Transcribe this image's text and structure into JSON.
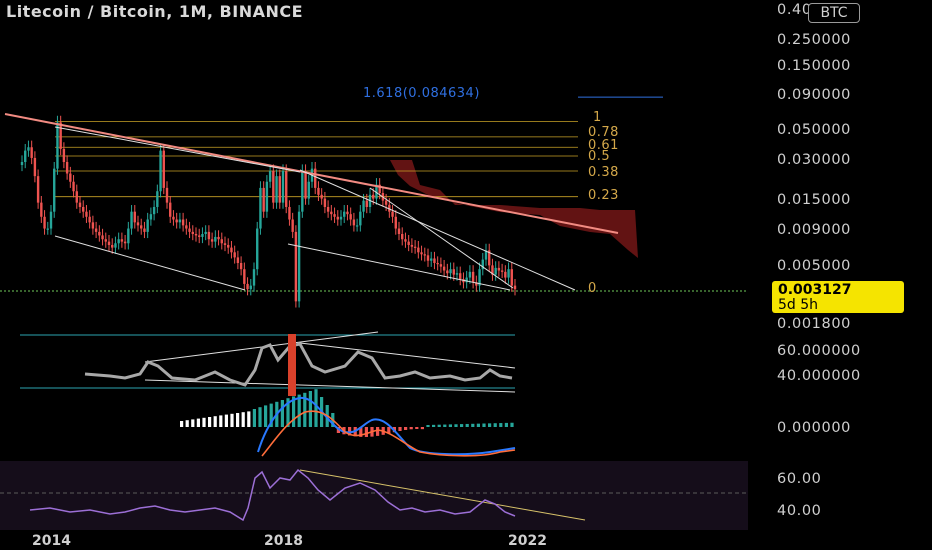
{
  "header": {
    "title": "Litecoin / Bitcoin, 1M, BINANCE",
    "currency_badge": "BTC"
  },
  "price_tag": {
    "price": "0.003127",
    "countdown": "5d 5h"
  },
  "fib_extension_label": "1.618(0.084634)",
  "colors": {
    "up": "#26a69a",
    "down": "#ef5350",
    "fib": "#c9a227",
    "trendline": "#f28b82",
    "cloud": "#b22222",
    "rsi": "#9c6fd6",
    "ext": "#2f6fe0"
  },
  "chart_data": [
    {
      "type": "candlestick",
      "title": "Litecoin / Bitcoin, 1M, BINANCE",
      "y_scale": "log",
      "y_ticks": [
        "0.400000",
        "0.250000",
        "0.150000",
        "0.090000",
        "0.050000",
        "0.030000",
        "0.015000",
        "0.009000",
        "0.005000",
        "0.003127",
        "0.001800"
      ],
      "x_ticks": [
        "2014",
        "2018",
        "2022"
      ],
      "current_price": 0.003127,
      "fib_levels": [
        {
          "label": "1",
          "value": 0.056
        },
        {
          "label": "0.78",
          "value": 0.043
        },
        {
          "label": "0.61",
          "value": 0.036
        },
        {
          "label": "0.5",
          "value": 0.031
        },
        {
          "label": "0.38",
          "value": 0.024
        },
        {
          "label": "0.23",
          "value": 0.0155
        },
        {
          "label": "0",
          "value": 0.0031
        }
      ],
      "fib_extension": {
        "label": "1.618(0.084634)",
        "value": 0.084634
      },
      "trend": [
        0.028,
        0.034,
        0.036,
        0.03,
        0.022,
        0.014,
        0.011,
        0.009,
        0.009,
        0.012,
        0.025,
        0.055,
        0.035,
        0.028,
        0.023,
        0.02,
        0.017,
        0.014,
        0.013,
        0.012,
        0.011,
        0.01,
        0.009,
        0.0085,
        0.008,
        0.0075,
        0.0072,
        0.0068,
        0.0065,
        0.007,
        0.0075,
        0.0072,
        0.007,
        0.009,
        0.012,
        0.01,
        0.0095,
        0.009,
        0.0085,
        0.0105,
        0.0115,
        0.013,
        0.017,
        0.034,
        0.018,
        0.014,
        0.011,
        0.0105,
        0.01,
        0.0105,
        0.0095,
        0.009,
        0.0085,
        0.0082,
        0.008,
        0.0078,
        0.0082,
        0.0085,
        0.0075,
        0.0072,
        0.0078,
        0.0075,
        0.007,
        0.0068,
        0.0065,
        0.006,
        0.0055,
        0.005,
        0.0045,
        0.0035,
        0.0032,
        0.0034,
        0.0045,
        0.009,
        0.018,
        0.012,
        0.02,
        0.024,
        0.014,
        0.022,
        0.014,
        0.024,
        0.013,
        0.0105,
        0.0085,
        0.0026,
        0.012,
        0.024,
        0.015,
        0.02,
        0.025,
        0.018,
        0.016,
        0.015,
        0.013,
        0.012,
        0.0115,
        0.011,
        0.0105,
        0.011,
        0.012,
        0.0115,
        0.0105,
        0.0095,
        0.0095,
        0.012,
        0.0145,
        0.013,
        0.016,
        0.015,
        0.019,
        0.0165,
        0.0145,
        0.0135,
        0.012,
        0.011,
        0.009,
        0.0082,
        0.0075,
        0.0072,
        0.0068,
        0.0066,
        0.0065,
        0.006,
        0.0058,
        0.0057,
        0.0052,
        0.0054,
        0.005,
        0.0049,
        0.0047,
        0.0044,
        0.0042,
        0.0045,
        0.0041,
        0.0042,
        0.0038,
        0.0036,
        0.0039,
        0.0043,
        0.0036,
        0.0034,
        0.0045,
        0.0053,
        0.0062,
        0.0048,
        0.0041,
        0.0046,
        0.0044,
        0.0043,
        0.0039,
        0.0045,
        0.0034,
        0.0032
      ]
    },
    {
      "type": "line",
      "name": "",
      "y_ticks": [
        "60.000000",
        "40.000000"
      ]
    },
    {
      "type": "bar",
      "name": "",
      "y_ticks": [
        "0.000000"
      ]
    },
    {
      "type": "line",
      "name": "",
      "y_ticks": [
        "60.00",
        "40.00"
      ]
    }
  ]
}
